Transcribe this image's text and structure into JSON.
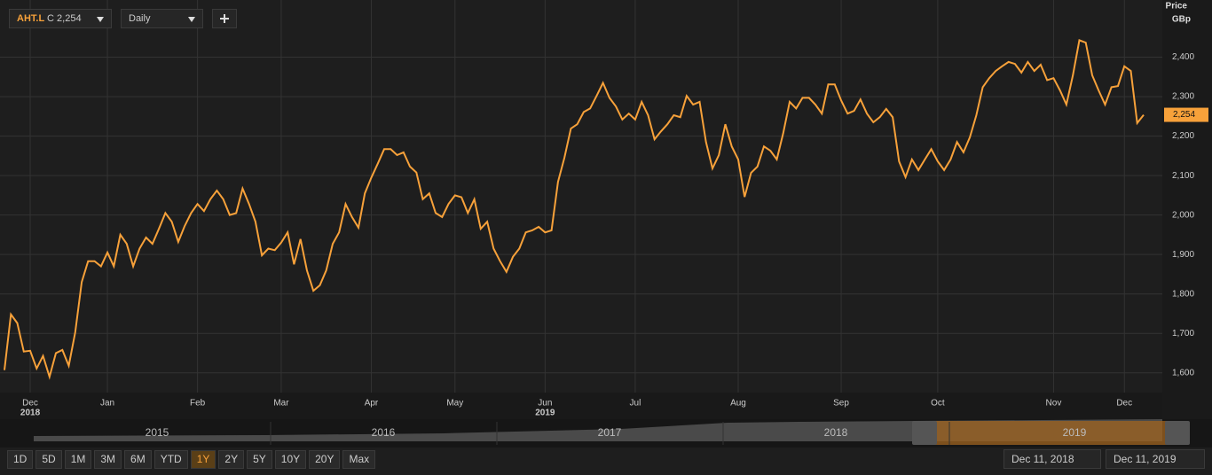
{
  "toolbar": {
    "symbol": "AHT.L",
    "quote": "C 2,254",
    "interval": "Daily"
  },
  "chart_data": {
    "type": "line",
    "ylabel": "Price",
    "yunit": "GBp",
    "series": [
      {
        "name": "AHT.L",
        "color": "#f7a13a",
        "last_label": "2,254",
        "values": [
          1607,
          1748,
          1726,
          1654,
          1656,
          1611,
          1643,
          1590,
          1650,
          1658,
          1618,
          1703,
          1830,
          1883,
          1883,
          1870,
          1905,
          1870,
          1950,
          1927,
          1870,
          1915,
          1943,
          1927,
          1965,
          2005,
          1983,
          1932,
          1972,
          2005,
          2028,
          2010,
          2040,
          2062,
          2040,
          2000,
          2005,
          2067,
          2028,
          1983,
          1898,
          1915,
          1911,
          1930,
          1956,
          1875,
          1939,
          1860,
          1808,
          1822,
          1860,
          1927,
          1956,
          2028,
          1995,
          1968,
          2055,
          2095,
          2130,
          2167,
          2167,
          2152,
          2159,
          2123,
          2108,
          2040,
          2055,
          2005,
          1995,
          2028,
          2050,
          2045,
          2005,
          2040,
          1965,
          1983,
          1915,
          1883,
          1856,
          1894,
          1915,
          1956,
          1961,
          1970,
          1956,
          1961,
          2084,
          2145,
          2219,
          2230,
          2261,
          2270,
          2302,
          2335,
          2297,
          2275,
          2242,
          2257,
          2242,
          2287,
          2253,
          2192,
          2212,
          2230,
          2253,
          2248,
          2302,
          2280,
          2287,
          2185,
          2118,
          2152,
          2230,
          2174,
          2141,
          2046,
          2107,
          2123,
          2174,
          2163,
          2141,
          2208,
          2287,
          2270,
          2297,
          2297,
          2280,
          2257,
          2331,
          2331,
          2290,
          2257,
          2264,
          2293,
          2257,
          2235,
          2248,
          2269,
          2248,
          2136,
          2096,
          2141,
          2114,
          2141,
          2167,
          2136,
          2114,
          2141,
          2185,
          2159,
          2197,
          2253,
          2324,
          2347,
          2365,
          2377,
          2388,
          2383,
          2361,
          2388,
          2365,
          2381,
          2342,
          2347,
          2316,
          2280,
          2354,
          2443,
          2437,
          2354,
          2316,
          2280,
          2324,
          2327,
          2377,
          2365,
          2233,
          2254
        ]
      }
    ],
    "xlim": [
      0,
      177
    ],
    "xticks": [
      {
        "value": 4,
        "label": "Dec"
      },
      {
        "value": 16,
        "label": "Jan"
      },
      {
        "value": 30,
        "label": "Feb"
      },
      {
        "value": 43,
        "label": "Mar"
      },
      {
        "value": 57,
        "label": "Apr"
      },
      {
        "value": 70,
        "label": "May"
      },
      {
        "value": 84,
        "label": "Jun"
      },
      {
        "value": 98,
        "label": "Jul"
      },
      {
        "value": 114,
        "label": "Aug"
      },
      {
        "value": 130,
        "label": "Sep"
      },
      {
        "value": 145,
        "label": "Oct"
      },
      {
        "value": 163,
        "label": "Nov"
      },
      {
        "value": 174,
        "label": "Dec"
      }
    ],
    "year_labels": [
      {
        "value": 4,
        "label": "2018"
      },
      {
        "value": 84,
        "label": "2019"
      }
    ],
    "ylim": [
      1550,
      2545
    ],
    "yticks": [
      {
        "value": 1600,
        "label": "1,600"
      },
      {
        "value": 1700,
        "label": "1,700"
      },
      {
        "value": 1800,
        "label": "1,800"
      },
      {
        "value": 1900,
        "label": "1,900"
      },
      {
        "value": 2000,
        "label": "2,000"
      },
      {
        "value": 2100,
        "label": "2,100"
      },
      {
        "value": 2200,
        "label": "2,200"
      },
      {
        "value": 2300,
        "label": "2,300"
      },
      {
        "value": 2400,
        "label": "2,400"
      }
    ],
    "grid": true
  },
  "navigator": {
    "years": [
      "2015",
      "2016",
      "2017",
      "2018",
      "2019"
    ]
  },
  "range_buttons": [
    "1D",
    "5D",
    "1M",
    "3M",
    "6M",
    "YTD",
    "1Y",
    "2Y",
    "5Y",
    "10Y",
    "20Y",
    "Max"
  ],
  "selected_range": "1Y",
  "date_range": {
    "from": "Dec 11, 2018",
    "to": "Dec 11, 2019"
  }
}
